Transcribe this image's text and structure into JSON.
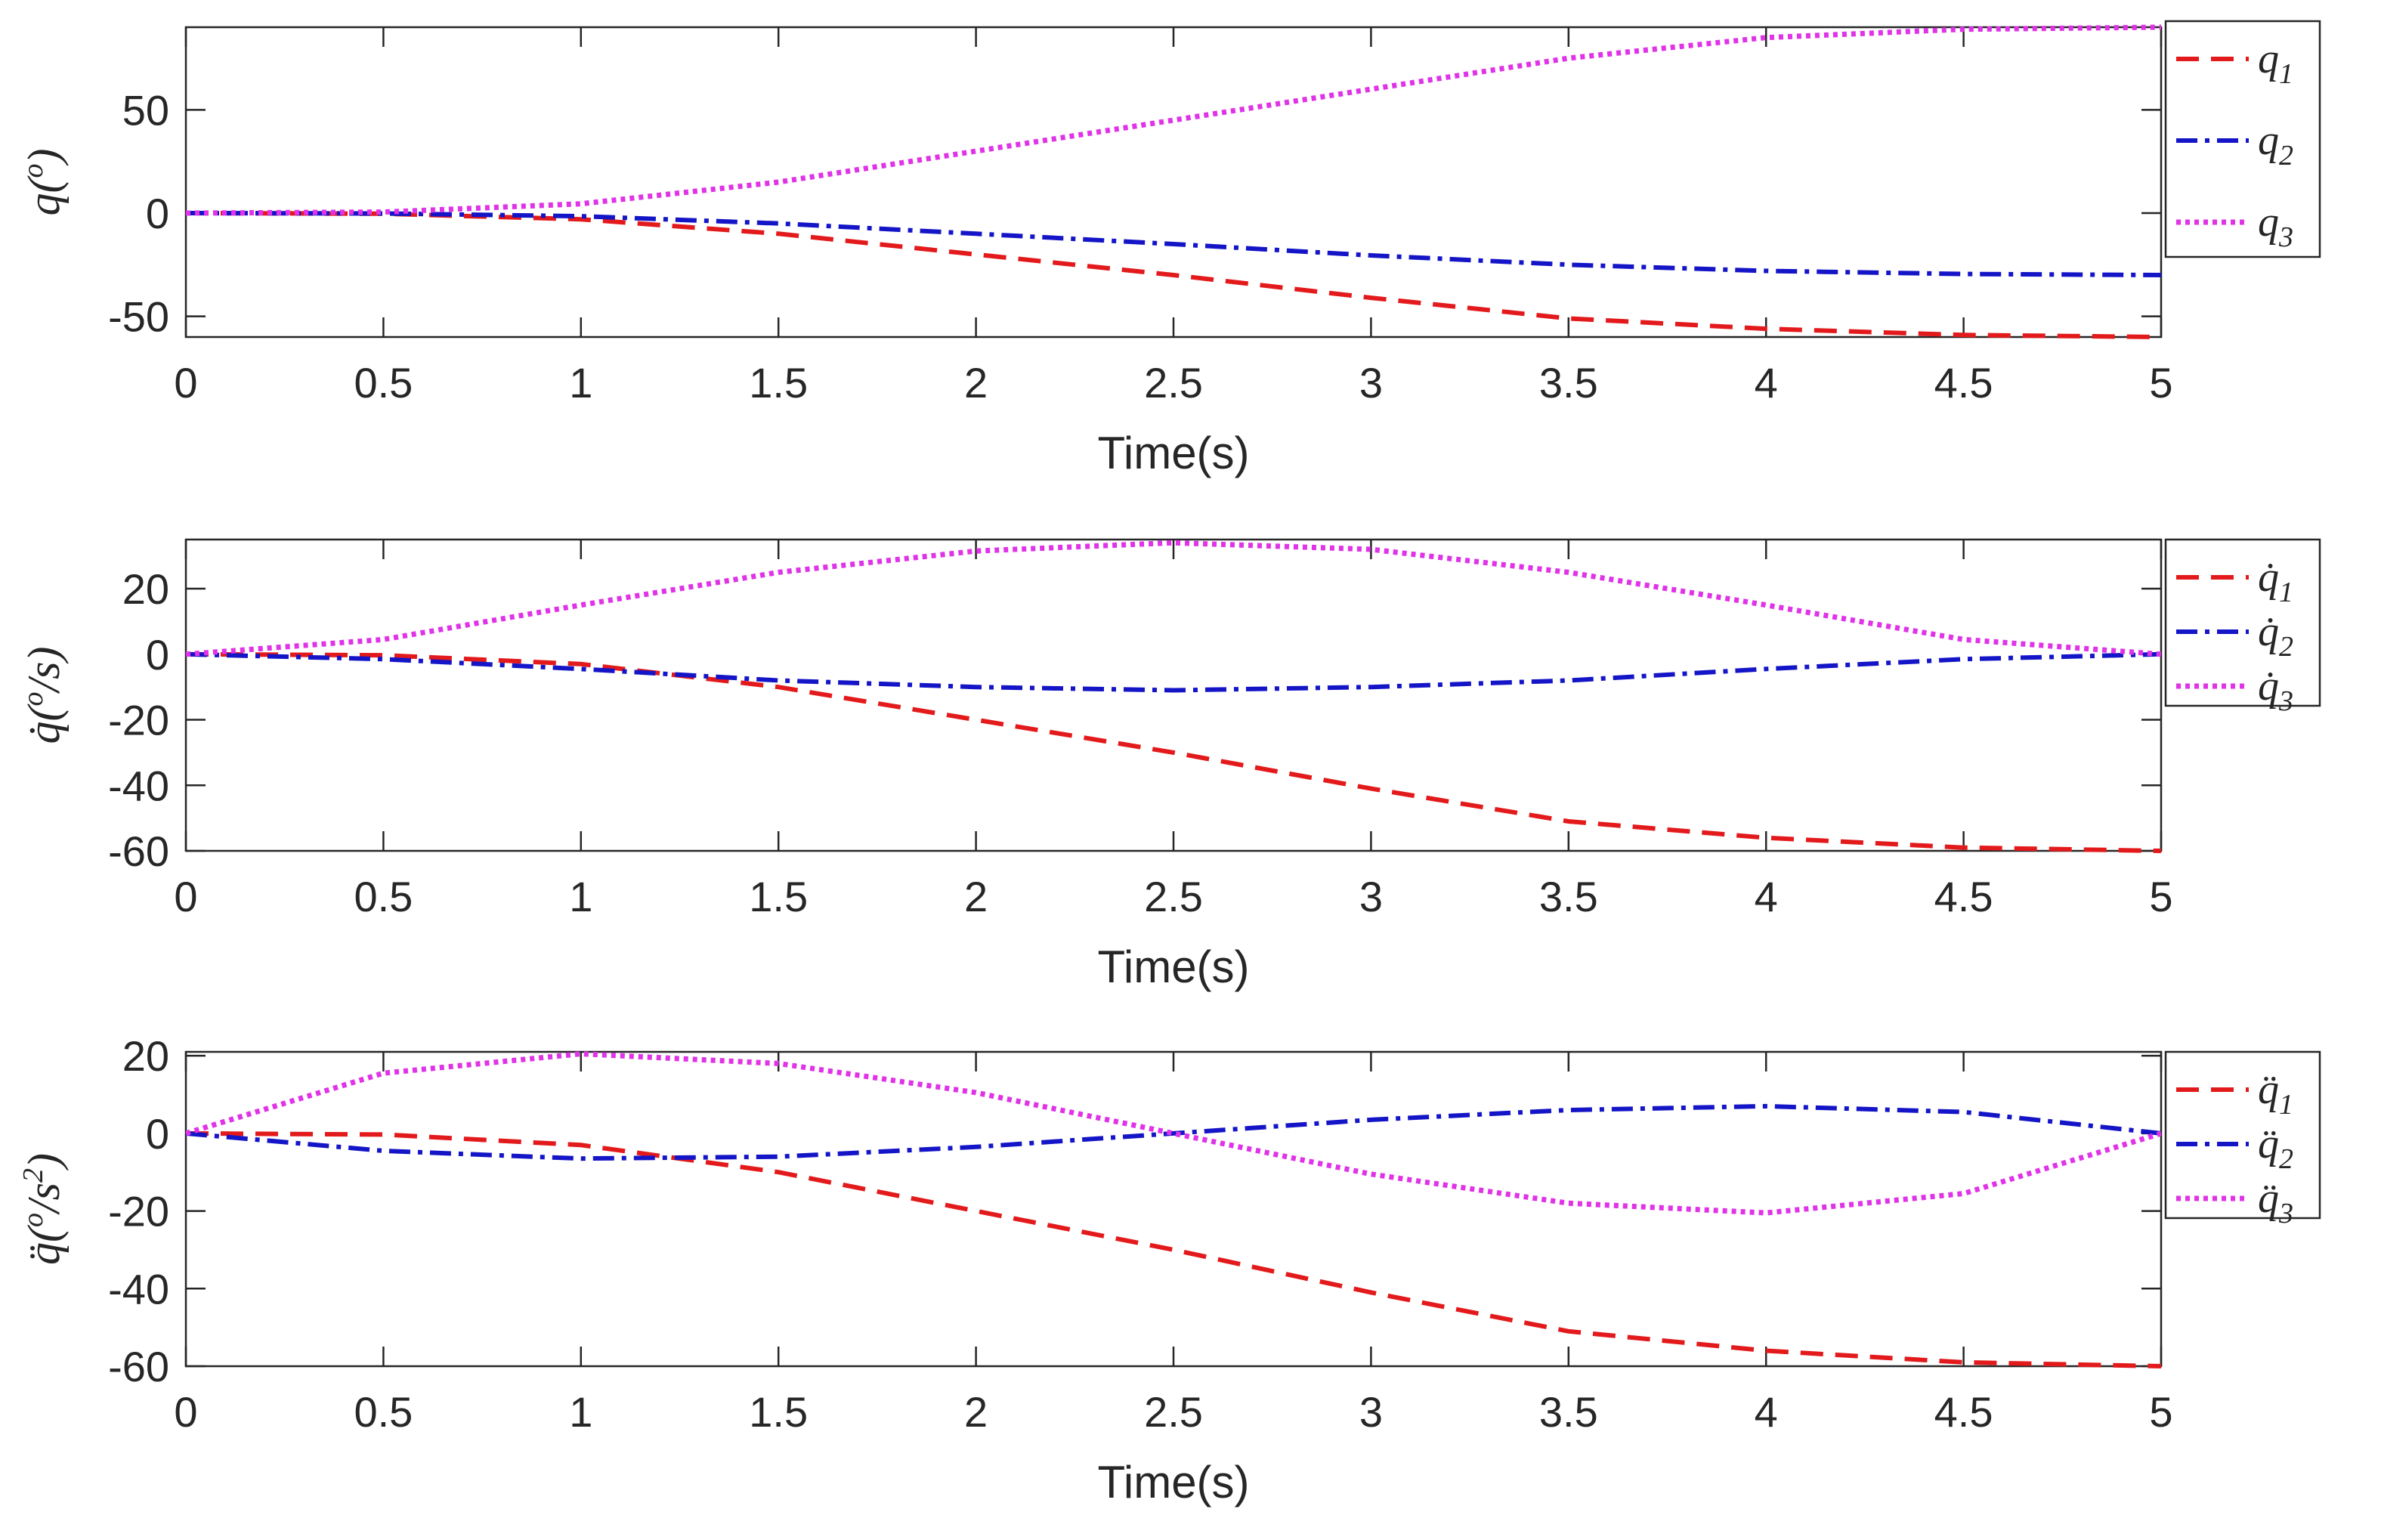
{
  "colors": {
    "q1": "#e31a1c",
    "q2": "#1515c8",
    "q3": "#e033e8",
    "axis": "#262626",
    "legend_border": "#262626"
  },
  "chart_data": [
    {
      "type": "line",
      "title": "",
      "xlabel": "Time(s)",
      "ylabel": "q(o)",
      "ylabel_base": "q(",
      "ylabel_sup": "o",
      "ylabel_close": ")",
      "xlim": [
        0,
        5
      ],
      "ylim": [
        -60,
        90
      ],
      "xticks": [
        0,
        0.5,
        1,
        1.5,
        2,
        2.5,
        3,
        3.5,
        4,
        4.5,
        5
      ],
      "xtick_labels": [
        "0",
        "0.5",
        "1",
        "1.5",
        "2",
        "2.5",
        "3",
        "3.5",
        "4",
        "4.5",
        "5"
      ],
      "yticks": [
        -50,
        0,
        50
      ],
      "ytick_labels": [
        "-50",
        "0",
        "50"
      ],
      "legend_position": "outside-right",
      "x": [
        0,
        0.5,
        1,
        1.5,
        2,
        2.5,
        3,
        3.5,
        4,
        4.5,
        5
      ],
      "series": [
        {
          "name": "q1",
          "label_base": "q",
          "label_sub": "1",
          "style": "dashed",
          "values": [
            0,
            -0.3,
            -3,
            -10,
            -20,
            -30,
            -41,
            -51,
            -56,
            -59,
            -60
          ]
        },
        {
          "name": "q2",
          "label_base": "q",
          "label_sub": "2",
          "style": "dashdot",
          "values": [
            0,
            -0.2,
            -1.5,
            -5,
            -10,
            -15,
            -20.5,
            -25,
            -28,
            -29.5,
            -30
          ]
        },
        {
          "name": "q3",
          "label_base": "q",
          "label_sub": "3",
          "style": "dotted",
          "values": [
            0,
            0.5,
            4.5,
            15,
            30,
            45,
            60,
            75,
            85,
            89,
            90
          ]
        }
      ]
    },
    {
      "type": "line",
      "title": "",
      "xlabel": "Time(s)",
      "ylabel": "q̇(o/s)",
      "ylabel_base": "q̇(",
      "ylabel_sup": "o",
      "ylabel_close": "/s)",
      "xlim": [
        0,
        5
      ],
      "ylim": [
        -60,
        35
      ],
      "xticks": [
        0,
        0.5,
        1,
        1.5,
        2,
        2.5,
        3,
        3.5,
        4,
        4.5,
        5
      ],
      "xtick_labels": [
        "0",
        "0.5",
        "1",
        "1.5",
        "2",
        "2.5",
        "3",
        "3.5",
        "4",
        "4.5",
        "5"
      ],
      "yticks": [
        -60,
        -40,
        -20,
        0,
        20
      ],
      "ytick_labels": [
        "-60",
        "-40",
        "-20",
        "0",
        "20"
      ],
      "legend_position": "outside-right",
      "x": [
        0,
        0.5,
        1,
        1.5,
        2,
        2.5,
        3,
        3.5,
        4,
        4.5,
        5
      ],
      "series": [
        {
          "name": "q̇1",
          "label_base": "q̇",
          "label_sub": "1",
          "style": "dashed",
          "values": [
            0,
            -0.3,
            -3,
            -10,
            -20,
            -30,
            -41,
            -51,
            -56,
            -59,
            -60
          ]
        },
        {
          "name": "q̇2",
          "label_base": "q̇",
          "label_sub": "2",
          "style": "dashdot",
          "values": [
            0,
            -1.5,
            -4.5,
            -8,
            -10,
            -11,
            -10,
            -8,
            -4.5,
            -1.5,
            0
          ]
        },
        {
          "name": "q̇3",
          "label_base": "q̇",
          "label_sub": "3",
          "style": "dotted",
          "values": [
            0,
            4.5,
            15,
            25,
            31.5,
            34,
            32,
            25,
            15,
            4.5,
            0
          ]
        }
      ]
    },
    {
      "type": "line",
      "title": "",
      "xlabel": "Time(s)",
      "ylabel": "q̈(o/s2)",
      "ylabel_base": "q̈(",
      "ylabel_sup": "o",
      "ylabel_close": "/s",
      "ylabel_sup2": "2",
      "ylabel_close2": ")",
      "xlim": [
        0,
        5
      ],
      "ylim": [
        -60,
        21
      ],
      "xticks": [
        0,
        0.5,
        1,
        1.5,
        2,
        2.5,
        3,
        3.5,
        4,
        4.5,
        5
      ],
      "xtick_labels": [
        "0",
        "0.5",
        "1",
        "1.5",
        "2",
        "2.5",
        "3",
        "3.5",
        "4",
        "4.5",
        "5"
      ],
      "yticks": [
        -60,
        -40,
        -20,
        0,
        20
      ],
      "ytick_labels": [
        "-60",
        "-40",
        "-20",
        "0",
        "20"
      ],
      "legend_position": "outside-right",
      "x": [
        0,
        0.5,
        1,
        1.5,
        2,
        2.5,
        3,
        3.5,
        4,
        4.5,
        5
      ],
      "series": [
        {
          "name": "q̈1",
          "label_base": "q̈",
          "label_sub": "1",
          "style": "dashed",
          "values": [
            0,
            -0.3,
            -3,
            -10,
            -20,
            -30,
            -41,
            -51,
            -56,
            -59,
            -60
          ]
        },
        {
          "name": "q̈2",
          "label_base": "q̈",
          "label_sub": "2",
          "style": "dashdot",
          "values": [
            0,
            -4.5,
            -6.5,
            -6,
            -3.5,
            0,
            3.5,
            6,
            7,
            5.5,
            0
          ]
        },
        {
          "name": "q̈3",
          "label_base": "q̈",
          "label_sub": "3",
          "style": "dotted",
          "values": [
            0,
            15.5,
            20.5,
            18,
            10.5,
            0,
            -10.5,
            -18,
            -20.5,
            -15.5,
            0
          ]
        }
      ]
    }
  ]
}
